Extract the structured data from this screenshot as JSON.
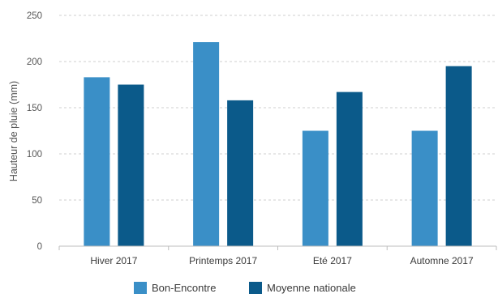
{
  "chart_data": {
    "type": "bar",
    "title": "",
    "xlabel": "",
    "ylabel": "Hauteur de pluie (mm)",
    "ylim": [
      0,
      250
    ],
    "yticks": [
      0,
      50,
      100,
      150,
      200,
      250
    ],
    "grid": true,
    "legend_position": "bottom",
    "categories": [
      "Hiver 2017",
      "Printemps 2017",
      "Eté 2017",
      "Automne 2017"
    ],
    "series": [
      {
        "name": "Bon-Encontre",
        "color": "#3a8fc7",
        "values": [
          183,
          221,
          125,
          125
        ]
      },
      {
        "name": "Moyenne nationale",
        "color": "#0b5a8a",
        "values": [
          175,
          158,
          167,
          195
        ]
      }
    ]
  }
}
